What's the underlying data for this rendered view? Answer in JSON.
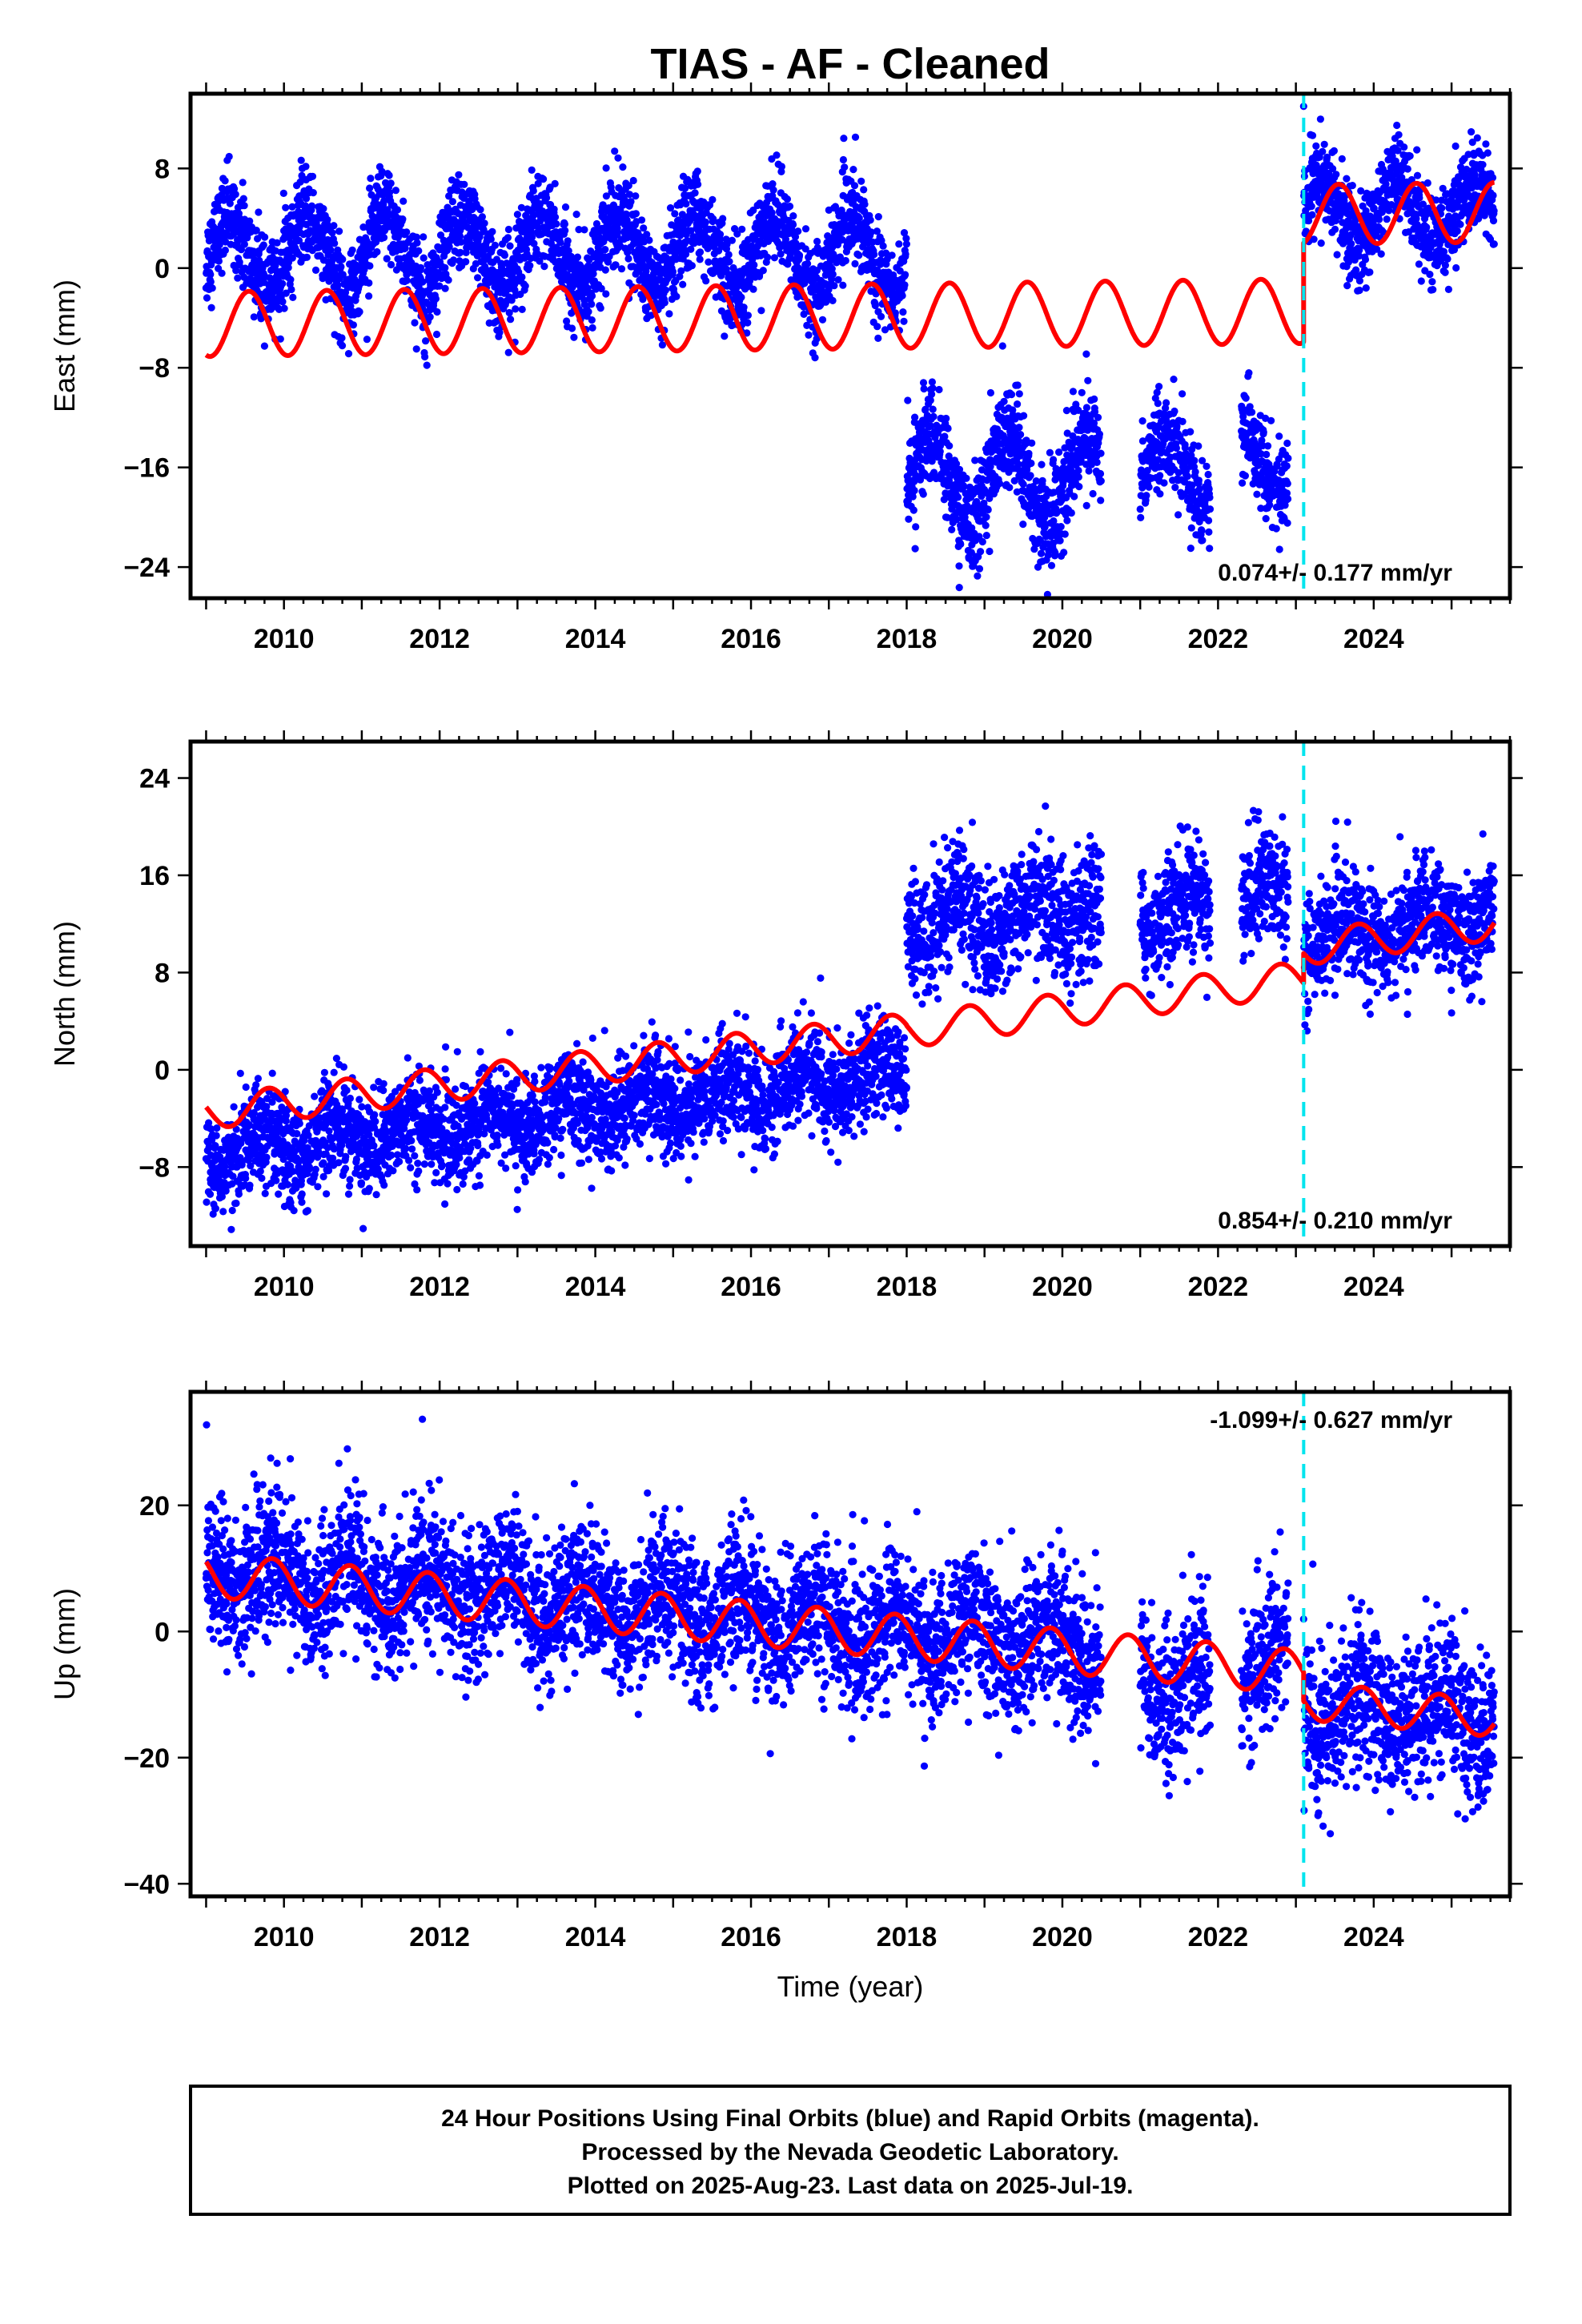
{
  "title": "TIAS  - AF - Cleaned",
  "colors": {
    "points": "#0000ff",
    "model": "#ff0000",
    "event_line": "#00e5ee",
    "frame": "#000000"
  },
  "footer": [
    "24 Hour Positions Using Final Orbits (blue) and Rapid Orbits (magenta).",
    "Processed by the Nevada Geodetic Laboratory.",
    "Plotted on 2025-Aug-23. Last data on 2025-Jul-19."
  ],
  "chart_data": [
    {
      "type": "scatter",
      "panel": "east",
      "ylabel": "East (mm)",
      "xlabel": "",
      "rate_label": "0.074+/- 0.177 mm/yr",
      "xlim": [
        2008.8,
        2025.75
      ],
      "ylim": [
        -26.5,
        14
      ],
      "xticks": [
        2010,
        2012,
        2014,
        2016,
        2018,
        2020,
        2022,
        2024
      ],
      "yticks": [
        -24,
        -16,
        -8,
        0,
        8
      ],
      "event_x": 2023.1,
      "observed": {
        "segments": [
          {
            "from": 2009.0,
            "to": 2018.0,
            "center": 1.2,
            "amp": 3.0,
            "trend": 0.0,
            "noise": 1.8,
            "phase": 0.05
          },
          {
            "from": 2018.0,
            "to": 2020.5,
            "center": -17.0,
            "amp": 3.5,
            "trend": 0.0,
            "noise": 2.0,
            "phase": 0.05
          },
          {
            "from": 2021.0,
            "to": 2021.9,
            "center": -16.0,
            "amp": 2.5,
            "trend": 0.0,
            "noise": 1.8,
            "phase": 0.05
          },
          {
            "from": 2022.3,
            "to": 2022.9,
            "center": -15.5,
            "amp": 2.5,
            "trend": 0.0,
            "noise": 1.8,
            "phase": 0.05
          },
          {
            "from": 2023.1,
            "to": 2025.55,
            "center": 4.5,
            "amp": 2.5,
            "trend": 0.0,
            "noise": 1.8,
            "phase": 0.05
          }
        ]
      },
      "model": {
        "pieces": [
          {
            "from": 2009.0,
            "to": 2023.1,
            "start": -4.5,
            "rate": 0.074,
            "amp": 2.6,
            "phase": 0.3
          },
          {
            "from": 2023.1,
            "to": 2025.55,
            "start": 4.3,
            "rate": 0.074,
            "amp": 2.4,
            "phase": 0.3
          }
        ]
      }
    },
    {
      "type": "scatter",
      "panel": "north",
      "ylabel": "North (mm)",
      "xlabel": "",
      "rate_label": "0.854+/- 0.210 mm/yr",
      "xlim": [
        2008.8,
        2025.75
      ],
      "ylim": [
        -14.5,
        27
      ],
      "xticks": [
        2010,
        2012,
        2014,
        2016,
        2018,
        2020,
        2022,
        2024
      ],
      "yticks": [
        -8,
        0,
        8,
        16,
        24
      ],
      "event_x": 2023.1,
      "observed": {
        "segments": [
          {
            "from": 2009.0,
            "to": 2018.0,
            "center": -7.0,
            "amp": 1.2,
            "trend": 0.75,
            "noise": 2.0,
            "phase": 0.4
          },
          {
            "from": 2018.0,
            "to": 2020.5,
            "center": 12.0,
            "amp": 1.8,
            "trend": 0.5,
            "noise": 2.5,
            "phase": 0.4
          },
          {
            "from": 2021.0,
            "to": 2021.9,
            "center": 13.0,
            "amp": 1.5,
            "trend": 0.0,
            "noise": 2.2,
            "phase": 0.4
          },
          {
            "from": 2022.3,
            "to": 2022.9,
            "center": 14.0,
            "amp": 1.5,
            "trend": 0.0,
            "noise": 2.5,
            "phase": 0.4
          },
          {
            "from": 2023.1,
            "to": 2025.55,
            "center": 11.0,
            "amp": 1.2,
            "trend": 0.6,
            "noise": 2.2,
            "phase": 0.4
          }
        ]
      },
      "model": {
        "pieces": [
          {
            "from": 2009.0,
            "to": 2018.0,
            "start": -3.5,
            "rate": 0.75,
            "amp": 1.4,
            "phase": 0.55
          },
          {
            "from": 2018.0,
            "to": 2023.1,
            "start": 3.2,
            "rate": 0.854,
            "amp": 1.4,
            "phase": 0.55
          },
          {
            "from": 2023.1,
            "to": 2025.55,
            "start": 10.0,
            "rate": 0.854,
            "amp": 1.4,
            "phase": 0.55
          }
        ]
      }
    },
    {
      "type": "scatter",
      "panel": "up",
      "ylabel": "Up (mm)",
      "xlabel": "Time (year)",
      "rate_label": "-1.099+/- 0.627 mm/yr",
      "xlim": [
        2008.8,
        2025.75
      ],
      "ylim": [
        -42,
        38
      ],
      "xticks": [
        2010,
        2012,
        2014,
        2016,
        2018,
        2020,
        2022,
        2024
      ],
      "yticks": [
        -40,
        -20,
        0,
        20
      ],
      "event_x": 2023.1,
      "observed": {
        "segments": [
          {
            "from": 2009.0,
            "to": 2020.5,
            "center": 10.0,
            "amp": 3.5,
            "trend": -1.1,
            "noise": 5.5,
            "phase": 0.6
          },
          {
            "from": 2021.0,
            "to": 2021.9,
            "center": -8.0,
            "amp": 3.0,
            "trend": 0.0,
            "noise": 6.0,
            "phase": 0.6
          },
          {
            "from": 2022.3,
            "to": 2022.9,
            "center": -4.0,
            "amp": 3.0,
            "trend": 0.0,
            "noise": 6.0,
            "phase": 0.6
          },
          {
            "from": 2023.1,
            "to": 2025.55,
            "center": -13.0,
            "amp": 3.0,
            "trend": 0.0,
            "noise": 6.0,
            "phase": 0.6
          }
        ]
      },
      "model": {
        "pieces": [
          {
            "from": 2009.0,
            "to": 2023.1,
            "start": 9.0,
            "rate": -1.099,
            "amp": 3.5,
            "phase": 0.6
          },
          {
            "from": 2023.1,
            "to": 2025.55,
            "start": -11.0,
            "rate": -1.099,
            "amp": 3.0,
            "phase": 0.6
          }
        ]
      }
    }
  ]
}
